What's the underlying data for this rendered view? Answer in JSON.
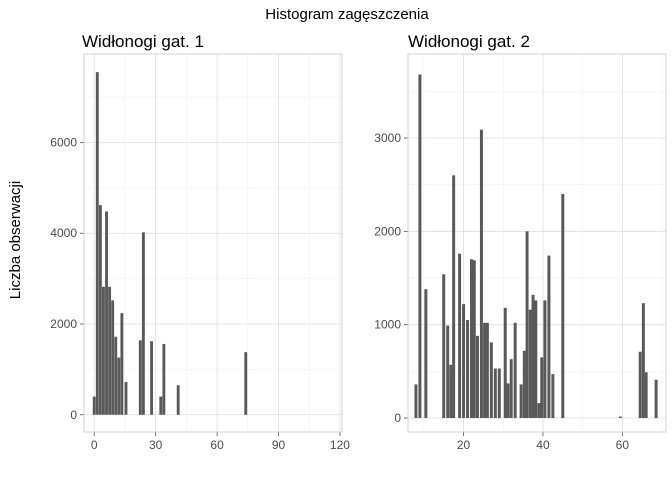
{
  "figure": {
    "suptitle": "Histogram zagęszczenia",
    "ylabel": "Liczba obserwacji"
  },
  "chart_data": [
    {
      "type": "bar",
      "title": "Widłonogi gat. 1",
      "xlabel": "",
      "ylabel": "Liczba obserwacji",
      "xlim": [
        -5,
        121
      ],
      "ylim": [
        -380,
        7950
      ],
      "xticks": [
        0,
        30,
        60,
        90,
        120
      ],
      "yticks": [
        0,
        2000,
        4000,
        6000
      ],
      "bin_width": 1.4,
      "x": [
        0,
        1.5,
        3,
        4.5,
        6,
        7.5,
        9,
        10.5,
        12,
        13.5,
        15.5,
        22.5,
        24,
        28,
        32.5,
        34,
        41,
        74
      ],
      "values": [
        400,
        7550,
        4620,
        2820,
        4480,
        2820,
        2520,
        1720,
        1260,
        2240,
        720,
        1640,
        4020,
        1620,
        400,
        1560,
        650,
        1380
      ],
      "grid": true,
      "color": "#595959"
    },
    {
      "type": "bar",
      "title": "Widłonogi gat. 2",
      "xlabel": "",
      "ylabel": "",
      "xlim": [
        6,
        71
      ],
      "ylim": [
        -150,
        3900
      ],
      "xticks": [
        20,
        40,
        60
      ],
      "yticks": [
        0,
        1000,
        2000,
        3000
      ],
      "bin_width": 0.75,
      "x": [
        8,
        9,
        10.5,
        15,
        16,
        16.8,
        17.5,
        19,
        20,
        21,
        22,
        22.7,
        23.5,
        24.5,
        25.3,
        26,
        27,
        28,
        29,
        30.5,
        31.2,
        32,
        33,
        34.5,
        35.3,
        36,
        36.8,
        37.5,
        38.2,
        39,
        39.7,
        40.5,
        41.5,
        42.5,
        45,
        59.5,
        64.5,
        65.3,
        66,
        68.5
      ],
      "values": [
        360,
        3680,
        1380,
        1540,
        990,
        570,
        2600,
        1760,
        1220,
        1050,
        1700,
        1690,
        880,
        3090,
        1020,
        1020,
        810,
        530,
        530,
        1180,
        370,
        630,
        1020,
        360,
        720,
        2000,
        1160,
        1320,
        1260,
        160,
        650,
        1260,
        1740,
        470,
        2400,
        15,
        710,
        1230,
        490,
        410
      ],
      "grid": true,
      "color": "#595959"
    }
  ]
}
